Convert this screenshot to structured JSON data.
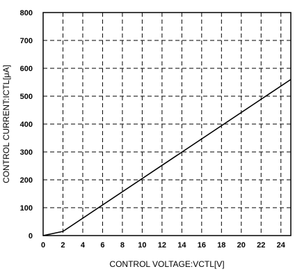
{
  "chart_data": {
    "type": "line",
    "title": "",
    "xlabel": "CONTROL VOLTAGE:VCTL[V]",
    "ylabel": "CONTROL CURRENT:ICTL[μA]",
    "xlim": [
      0,
      25
    ],
    "ylim": [
      0,
      800
    ],
    "xticks": [
      0,
      2,
      4,
      6,
      8,
      10,
      12,
      14,
      16,
      18,
      20,
      22,
      24
    ],
    "yticks": [
      0,
      100,
      200,
      300,
      400,
      500,
      600,
      700,
      800
    ],
    "grid": true,
    "grid_style": "dashed",
    "series": [
      {
        "x": [
          0,
          2,
          25
        ],
        "y": [
          0,
          15,
          560
        ]
      }
    ]
  }
}
